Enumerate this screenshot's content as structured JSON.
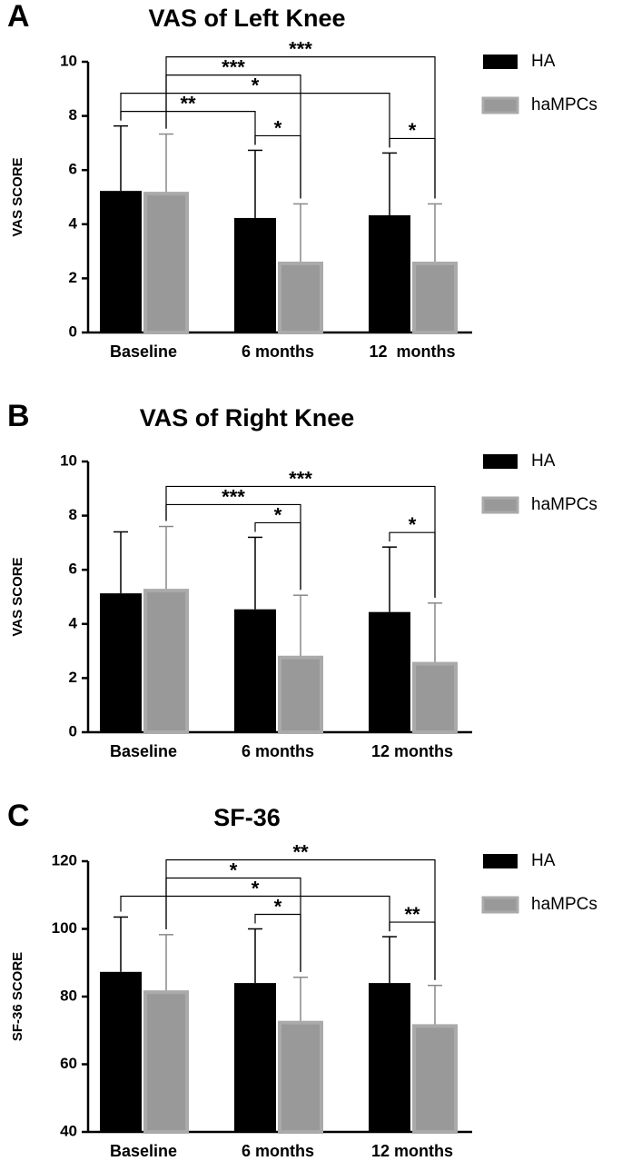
{
  "chart_data": [
    {
      "type": "bar",
      "panel_label": "A",
      "title": "VAS of Left Knee",
      "y_label": "VAS SCORE",
      "categories": [
        "Baseline",
        "6 months",
        "12  months"
      ],
      "series": [
        {
          "name": "HA",
          "color": "#000000",
          "values": [
            5.23,
            4.23,
            4.33
          ],
          "errors": [
            2.4,
            2.5,
            2.3
          ]
        },
        {
          "name": "haMPCs",
          "color": "#999999",
          "values": [
            5.13,
            2.55,
            2.55
          ],
          "errors": [
            2.2,
            2.2,
            2.2
          ]
        }
      ],
      "ylim": [
        0,
        10
      ],
      "yticks": [
        0,
        2,
        4,
        6,
        8,
        10
      ],
      "grid": false,
      "brackets": [
        {
          "label": "*",
          "between": [
            [
              1,
              0
            ],
            [
              1,
              1
            ]
          ]
        },
        {
          "label": "*",
          "between": [
            [
              2,
              0
            ],
            [
              2,
              1
            ]
          ]
        },
        {
          "label": "**",
          "between": [
            [
              0,
              0
            ],
            [
              1,
              0
            ]
          ]
        },
        {
          "label": "*",
          "between": [
            [
              0,
              0
            ],
            [
              2,
              0
            ]
          ]
        },
        {
          "label": "***",
          "between": [
            [
              0,
              1
            ],
            [
              1,
              1
            ]
          ]
        },
        {
          "label": "***",
          "between": [
            [
              0,
              1
            ],
            [
              2,
              1
            ]
          ]
        }
      ]
    },
    {
      "type": "bar",
      "panel_label": "B",
      "title": "VAS of Right Knee",
      "y_label": "VAS SCORE",
      "categories": [
        "Baseline",
        "6 months",
        "12 months"
      ],
      "series": [
        {
          "name": "HA",
          "color": "#000000",
          "values": [
            5.13,
            4.54,
            4.44
          ],
          "errors": [
            2.27,
            2.66,
            2.4
          ]
        },
        {
          "name": "haMPCs",
          "color": "#999999",
          "values": [
            5.23,
            2.76,
            2.53
          ],
          "errors": [
            2.37,
            2.3,
            2.24
          ]
        }
      ],
      "ylim": [
        0,
        10
      ],
      "yticks": [
        0,
        2,
        4,
        6,
        8,
        10
      ],
      "grid": false,
      "brackets": [
        {
          "label": "*",
          "between": [
            [
              1,
              0
            ],
            [
              1,
              1
            ]
          ]
        },
        {
          "label": "*",
          "between": [
            [
              2,
              0
            ],
            [
              2,
              1
            ]
          ]
        },
        {
          "label": "***",
          "between": [
            [
              0,
              1
            ],
            [
              1,
              1
            ]
          ]
        },
        {
          "label": "***",
          "between": [
            [
              0,
              1
            ],
            [
              2,
              1
            ]
          ]
        }
      ]
    },
    {
      "type": "bar",
      "panel_label": "C",
      "title": "SF-36",
      "y_label": "SF-36 SCORE",
      "categories": [
        "Baseline",
        "6 months",
        "12 months"
      ],
      "series": [
        {
          "name": "HA",
          "color": "#000000",
          "values": [
            87.3,
            84,
            84
          ],
          "errors": [
            16.2,
            16,
            13.7
          ]
        },
        {
          "name": "haMPCs",
          "color": "#999999",
          "values": [
            81.3,
            72.3,
            71.3
          ],
          "errors": [
            17,
            13.4,
            12
          ]
        }
      ],
      "ylim": [
        40,
        120
      ],
      "yticks": [
        40,
        60,
        80,
        100,
        120
      ],
      "grid": false,
      "brackets": [
        {
          "label": "*",
          "between": [
            [
              1,
              0
            ],
            [
              1,
              1
            ]
          ]
        },
        {
          "label": "**",
          "between": [
            [
              2,
              0
            ],
            [
              2,
              1
            ]
          ]
        },
        {
          "label": "*",
          "between": [
            [
              0,
              0
            ],
            [
              2,
              0
            ]
          ]
        },
        {
          "label": "*",
          "between": [
            [
              0,
              1
            ],
            [
              1,
              1
            ]
          ]
        },
        {
          "label": "**",
          "between": [
            [
              0,
              1
            ],
            [
              2,
              1
            ]
          ]
        }
      ]
    }
  ]
}
